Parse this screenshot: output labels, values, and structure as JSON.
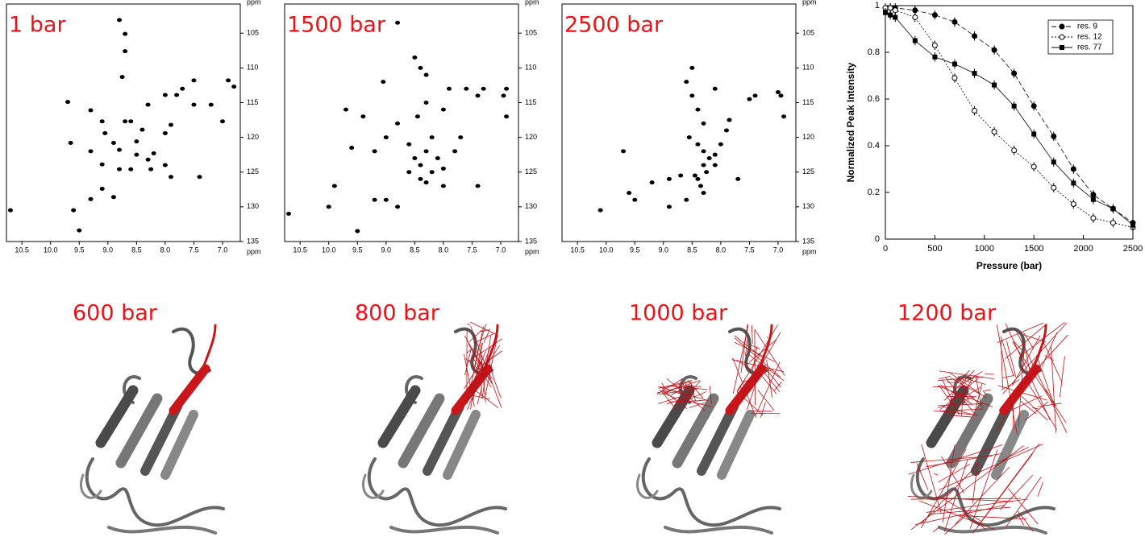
{
  "chart_data": [
    {
      "type": "scatter",
      "title": "1 bar",
      "xlabel": "ppm",
      "ylabel": "ppm",
      "color": "#000000",
      "xlim": [
        10.77,
        6.69
      ],
      "ylim": [
        135,
        100.8
      ],
      "xticks": [
        10.5,
        {
          "value": 10,
          "label": "10.0"
        },
        9.5,
        {
          "value": 9,
          "label": "9.0"
        },
        8.5,
        {
          "value": 8,
          "label": "8.0"
        },
        7.5,
        {
          "value": 7,
          "label": "7.0"
        }
      ],
      "yticks": [
        105,
        110,
        115,
        120,
        125,
        130,
        135
      ],
      "x": [
        8.8,
        8.7,
        8.7,
        8.75,
        10.7,
        9.5,
        9.7,
        9.3,
        9.1,
        9.05,
        8.6,
        8.4,
        8.7,
        8.5,
        8.8,
        8.2,
        8.0,
        7.9,
        7.5,
        7.2,
        6.9,
        6.8,
        7.5,
        7.7,
        7.8,
        8.0,
        8.3,
        8.9,
        8.5,
        8.3,
        8.0,
        9.6,
        9.3,
        8.9,
        9.1,
        8.6,
        7.9,
        7.4,
        9.65,
        9.3,
        9.1,
        8.8,
        8.25,
        7.0
      ],
      "y": [
        103.1,
        105.1,
        107.6,
        111.3,
        130.5,
        133.4,
        114.9,
        116.1,
        117.7,
        119.4,
        117.7,
        118.9,
        117.7,
        120.6,
        121.8,
        122.3,
        119.4,
        118.2,
        115.3,
        115.3,
        111.8,
        112.7,
        111.8,
        113.0,
        113.9,
        113.9,
        115.3,
        120.8,
        122.5,
        123.2,
        124.0,
        130.5,
        128.9,
        128.6,
        127.4,
        124.6,
        125.7,
        125.7,
        120.8,
        122.0,
        123.9,
        124.6,
        124.6,
        117.7
      ]
    },
    {
      "type": "scatter",
      "title": "1500 bar",
      "xlabel": "ppm",
      "ylabel": "ppm",
      "color": "#000000",
      "xlim": [
        10.77,
        6.69
      ],
      "ylim": [
        135,
        100.8
      ],
      "xticks": [
        10.5,
        {
          "value": 10,
          "label": "10.0"
        },
        9.5,
        {
          "value": 9,
          "label": "9.0"
        },
        8.5,
        {
          "value": 8,
          "label": "8.0"
        },
        7.5,
        {
          "value": 7,
          "label": "7.0"
        }
      ],
      "yticks": [
        105,
        110,
        115,
        120,
        125,
        130,
        135
      ],
      "x": [
        8.8,
        8.5,
        8.4,
        8.3,
        10.7,
        9.5,
        10.0,
        9.9,
        9.7,
        9.6,
        9.4,
        9.2,
        9.0,
        8.8,
        8.6,
        8.5,
        8.4,
        8.3,
        8.2,
        8.1,
        8.0,
        8.4,
        8.6,
        8.2,
        7.8,
        7.7,
        7.6,
        7.4,
        7.3,
        7.9,
        8.0,
        8.3,
        6.95,
        6.9,
        6.9,
        7.4,
        9.2,
        9.0,
        8.8,
        8.3,
        8.0,
        9.05,
        8.45
      ],
      "y": [
        103.5,
        108.5,
        110,
        111,
        131,
        133.5,
        130,
        127,
        116,
        121.5,
        117,
        122,
        120,
        118,
        121,
        123,
        124,
        122,
        125,
        123,
        124.5,
        126,
        125,
        120,
        122,
        120,
        113,
        114,
        113,
        113,
        116,
        115,
        114,
        113,
        117,
        127,
        129,
        129,
        130,
        126.5,
        127,
        112,
        117
      ]
    },
    {
      "type": "scatter",
      "title": "2500 bar",
      "xlabel": "ppm",
      "ylabel": "ppm",
      "color": "#000000",
      "xlim": [
        10.77,
        6.69
      ],
      "ylim": [
        135,
        100.8
      ],
      "xticks": [
        10.5,
        {
          "value": 10,
          "label": "10.0"
        },
        9.5,
        {
          "value": 9,
          "label": "9.0"
        },
        8.5,
        {
          "value": 8,
          "label": "8.0"
        },
        7.5,
        {
          "value": 7,
          "label": "7.0"
        }
      ],
      "yticks": [
        105,
        110,
        115,
        120,
        125,
        130,
        135
      ],
      "x": [
        8.5,
        8.6,
        8.5,
        8.4,
        8.3,
        8.55,
        8.4,
        8.3,
        8.2,
        8.1,
        8.3,
        8.25,
        8.4,
        8.35,
        8.3,
        8.45,
        8.1,
        8.0,
        7.9,
        7.5,
        7.4,
        6.95,
        7.0,
        6.9,
        10.1,
        9.5,
        9.6,
        9.7,
        8.9,
        8.7,
        7.7,
        8.9,
        8.1,
        7.85,
        8.6,
        9.2
      ],
      "y": [
        110,
        112,
        114,
        116,
        118,
        120,
        121,
        122,
        123,
        122.5,
        124,
        125,
        126,
        127,
        128,
        125.5,
        124,
        121,
        119,
        114.5,
        114,
        114,
        113.5,
        117,
        130.5,
        129,
        128,
        122,
        126,
        125.5,
        126,
        130,
        113,
        117.5,
        129,
        126.5
      ]
    },
    {
      "type": "line",
      "xlabel": "Pressure (bar)",
      "ylabel": "Normalized Peak Intensity",
      "xlim": [
        0,
        2500
      ],
      "ylim": [
        0,
        1
      ],
      "legend": "top-right",
      "xticks": [
        0,
        500,
        1000,
        1500,
        2000,
        2500
      ],
      "yticks": [
        0,
        0.2,
        0.4,
        0.6,
        0.8,
        1
      ],
      "x": [
        0,
        50,
        100,
        300,
        500,
        700,
        900,
        1100,
        1300,
        1500,
        1700,
        1900,
        2100,
        2300,
        2500
      ],
      "series": [
        {
          "name": "res. 9",
          "color": "#000000",
          "marker": "circle-filled",
          "dash": "6 3",
          "values": [
            0.99,
            0.99,
            0.99,
            0.98,
            0.96,
            0.93,
            0.87,
            0.81,
            0.71,
            0.57,
            0.44,
            0.3,
            0.19,
            0.13,
            0.07
          ],
          "errors": [
            0.02,
            0.02,
            0.02,
            0.02,
            0.02,
            0.02,
            0.02,
            0.02,
            0.02,
            0.02,
            0.02,
            0.02,
            0.02,
            0.02,
            0.02
          ]
        },
        {
          "name": "res. 12",
          "color": "#000000",
          "marker": "circle-open",
          "dash": "2 2",
          "values": [
            0.99,
            0.99,
            0.98,
            0.95,
            0.83,
            0.69,
            0.55,
            0.46,
            0.38,
            0.31,
            0.22,
            0.15,
            0.09,
            0.07,
            0.05
          ],
          "errors": [
            0.02,
            0.02,
            0.02,
            0.02,
            0.02,
            0.02,
            0.02,
            0.02,
            0.02,
            0.02,
            0.02,
            0.02,
            0.02,
            0.02,
            0.02
          ]
        },
        {
          "name": "res. 77",
          "color": "#000000",
          "marker": "square",
          "dash": "",
          "values": [
            0.97,
            0.96,
            0.95,
            0.85,
            0.78,
            0.75,
            0.71,
            0.66,
            0.57,
            0.45,
            0.33,
            0.24,
            0.17,
            0.13,
            0.06
          ],
          "errors": [
            0.02,
            0.02,
            0.02,
            0.02,
            0.02,
            0.02,
            0.02,
            0.02,
            0.02,
            0.02,
            0.02,
            0.02,
            0.02,
            0.02,
            0.02
          ]
        }
      ]
    }
  ],
  "structures": [
    {
      "label": "600 bar"
    },
    {
      "label": "800 bar"
    },
    {
      "label": "1000 bar"
    },
    {
      "label": "1200 bar"
    }
  ]
}
